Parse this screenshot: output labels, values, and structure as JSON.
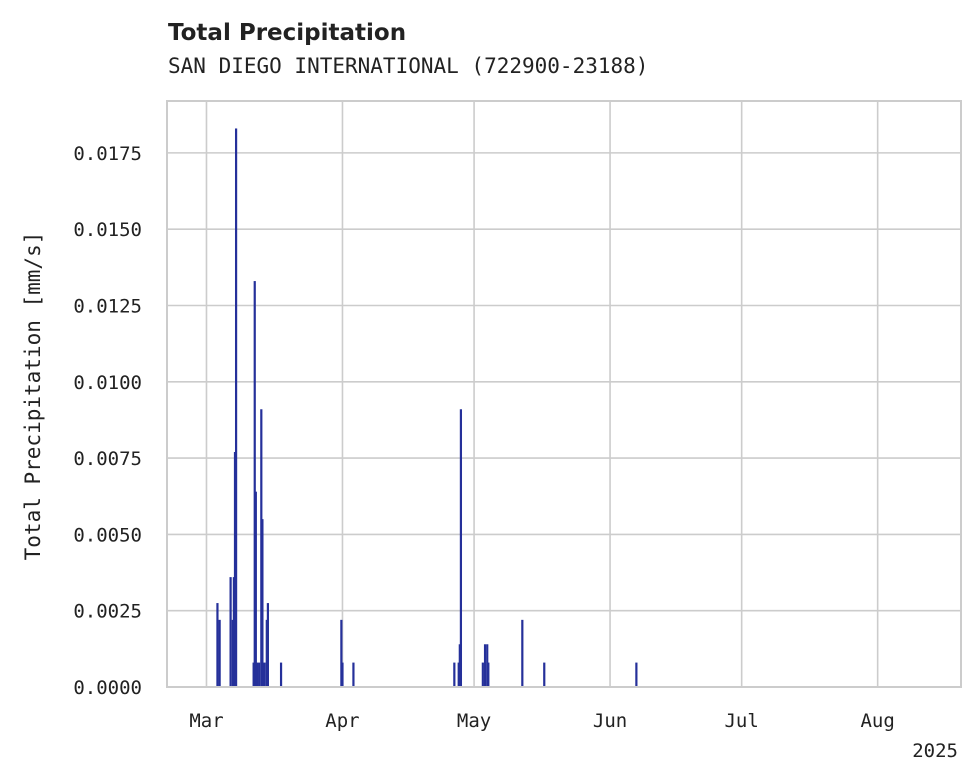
{
  "chart_data": {
    "type": "bar",
    "title": "Total Precipitation",
    "subtitle": "SAN DIEGO INTERNATIONAL (722900-23188)",
    "ylabel": "Total Precipitation [mm/s]",
    "xlabel": "",
    "x_offset_label": "2025",
    "xlim": [
      "2025-02-20",
      "2025-08-20"
    ],
    "ylim": [
      0,
      0.0192
    ],
    "x_ticks": [
      {
        "date": "2025-03-01",
        "label": "Mar"
      },
      {
        "date": "2025-04-01",
        "label": "Apr"
      },
      {
        "date": "2025-05-01",
        "label": "May"
      },
      {
        "date": "2025-06-01",
        "label": "Jun"
      },
      {
        "date": "2025-07-01",
        "label": "Jul"
      },
      {
        "date": "2025-08-01",
        "label": "Aug"
      }
    ],
    "y_ticks": [
      {
        "value": 0,
        "label": "0.0000"
      },
      {
        "value": 0.0025,
        "label": "0.0025"
      },
      {
        "value": 0.005,
        "label": "0.0050"
      },
      {
        "value": 0.0075,
        "label": "0.0075"
      },
      {
        "value": 0.01,
        "label": "0.0100"
      },
      {
        "value": 0.0125,
        "label": "0.0125"
      },
      {
        "value": 0.015,
        "label": "0.0150"
      },
      {
        "value": 0.0175,
        "label": "0.0175"
      }
    ],
    "grid": true,
    "series": [
      {
        "color": "#25309a",
        "points": [
          {
            "x": "2025-03-03 12:00",
            "y": 0.00275
          },
          {
            "x": "2025-03-04 00:00",
            "y": 0.0022
          },
          {
            "x": "2025-03-06 12:00",
            "y": 0.0036
          },
          {
            "x": "2025-03-07 00:00",
            "y": 0.0022
          },
          {
            "x": "2025-03-07 06:00",
            "y": 0.0036
          },
          {
            "x": "2025-03-07 12:00",
            "y": 0.0077
          },
          {
            "x": "2025-03-07 18:00",
            "y": 0.0183
          },
          {
            "x": "2025-03-11 18:00",
            "y": 0.0008
          },
          {
            "x": "2025-03-12 00:00",
            "y": 0.0133
          },
          {
            "x": "2025-03-12 06:00",
            "y": 0.0064
          },
          {
            "x": "2025-03-12 12:00",
            "y": 0.0008
          },
          {
            "x": "2025-03-13 00:00",
            "y": 0.0008
          },
          {
            "x": "2025-03-13 12:00",
            "y": 0.0091
          },
          {
            "x": "2025-03-13 18:00",
            "y": 0.0055
          },
          {
            "x": "2025-03-14 06:00",
            "y": 0.0008
          },
          {
            "x": "2025-03-14 18:00",
            "y": 0.0022
          },
          {
            "x": "2025-03-15 00:00",
            "y": 0.00275
          },
          {
            "x": "2025-03-18 00:00",
            "y": 0.0008
          },
          {
            "x": "2025-03-31 18:00",
            "y": 0.0022
          },
          {
            "x": "2025-04-01 00:00",
            "y": 0.0008
          },
          {
            "x": "2025-04-03 12:00",
            "y": 0.0008
          },
          {
            "x": "2025-04-26 12:00",
            "y": 0.0008
          },
          {
            "x": "2025-04-27 12:00",
            "y": 0.0008
          },
          {
            "x": "2025-04-27 18:00",
            "y": 0.0014
          },
          {
            "x": "2025-04-28 00:00",
            "y": 0.0091
          },
          {
            "x": "2025-05-03 00:00",
            "y": 0.0008
          },
          {
            "x": "2025-05-03 12:00",
            "y": 0.0014
          },
          {
            "x": "2025-05-04 00:00",
            "y": 0.0014
          },
          {
            "x": "2025-05-04 06:00",
            "y": 0.0008
          },
          {
            "x": "2025-05-12 00:00",
            "y": 0.0022
          },
          {
            "x": "2025-05-17 00:00",
            "y": 0.0008
          },
          {
            "x": "2025-06-07 00:00",
            "y": 0.0008
          }
        ]
      }
    ]
  }
}
